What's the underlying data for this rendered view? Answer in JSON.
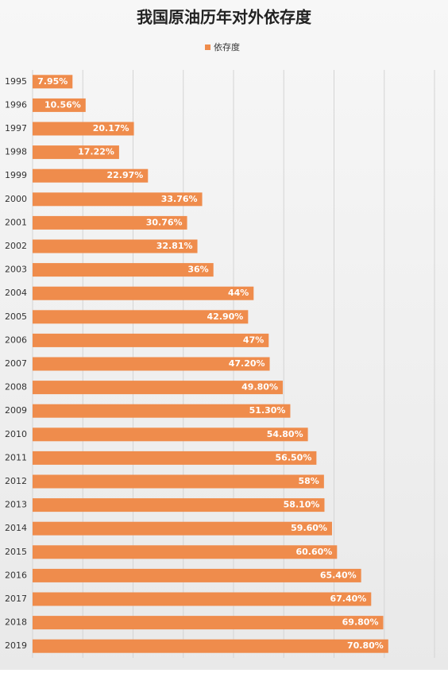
{
  "chart_data": {
    "type": "bar",
    "orientation": "horizontal",
    "title": "我国原油历年对外依存度",
    "categories": [
      "1995",
      "1996",
      "1997",
      "1998",
      "1999",
      "2000",
      "2001",
      "2002",
      "2003",
      "2004",
      "2005",
      "2006",
      "2007",
      "2008",
      "2009",
      "2010",
      "2011",
      "2012",
      "2013",
      "2014",
      "2015",
      "2016",
      "2017",
      "2018",
      "2019"
    ],
    "series": [
      {
        "name": "依存度",
        "color": "#ef8c4c",
        "values": [
          7.95,
          10.56,
          20.17,
          17.22,
          22.97,
          33.76,
          30.76,
          32.81,
          36,
          44,
          42.9,
          47,
          47.2,
          49.8,
          51.3,
          54.8,
          56.5,
          58,
          58.1,
          59.6,
          60.6,
          65.4,
          67.4,
          69.8,
          70.8
        ],
        "value_labels": [
          "7.95%",
          "10.56%",
          "20.17%",
          "17.22%",
          "22.97%",
          "33.76%",
          "30.76%",
          "32.81%",
          "36%",
          "44%",
          "42.90%",
          "47%",
          "47.20%",
          "49.80%",
          "51.30%",
          "54.80%",
          "56.50%",
          "58%",
          "58.10%",
          "59.60%",
          "60.60%",
          "65.40%",
          "67.40%",
          "69.80%",
          "70.80%"
        ]
      }
    ],
    "xlim": [
      0,
      80
    ],
    "xticks": [
      0,
      10,
      20,
      30,
      40,
      50,
      60,
      70,
      80
    ],
    "grid": true,
    "legend": "top"
  }
}
